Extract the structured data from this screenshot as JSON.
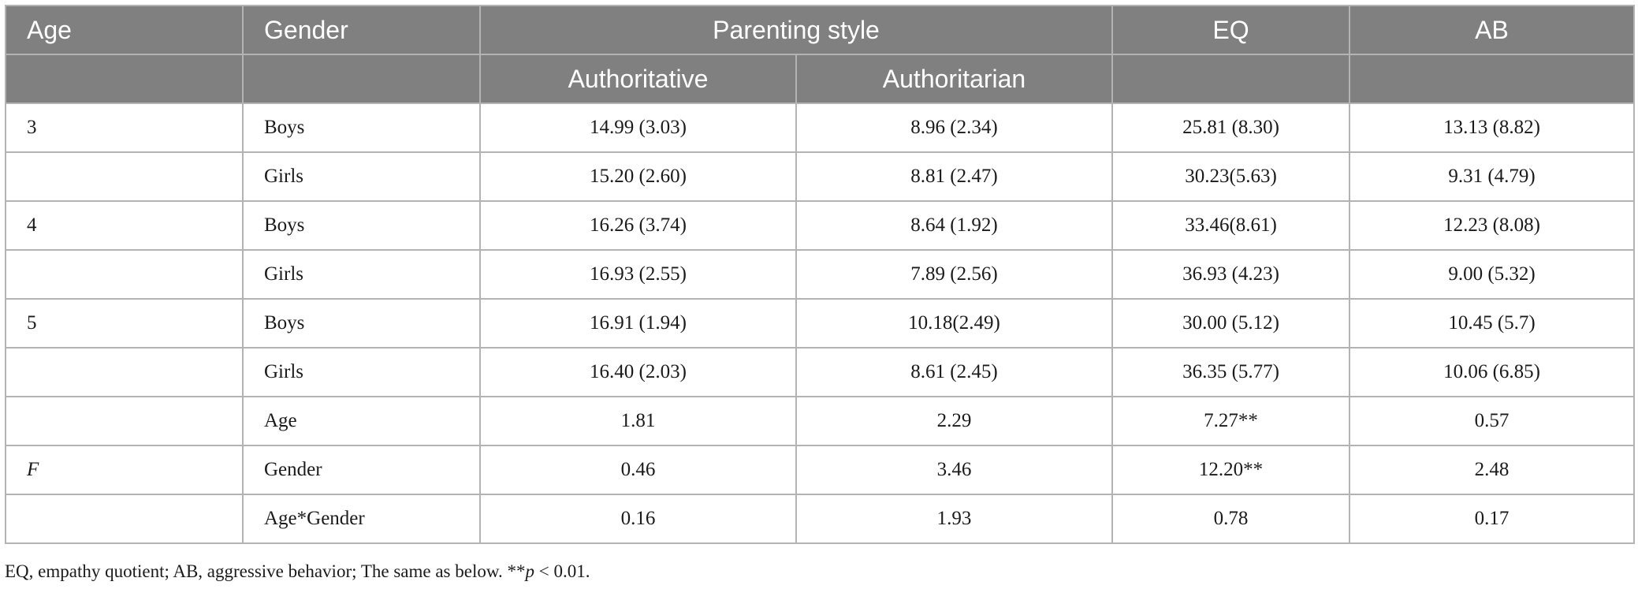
{
  "table": {
    "header_row1": {
      "age": "Age",
      "gender": "Gender",
      "parenting_style": "Parenting style",
      "eq": "EQ",
      "ab": "AB"
    },
    "header_row2": {
      "authoritative": "Authoritative",
      "authoritarian": "Authoritarian"
    },
    "rows": [
      {
        "age": "3",
        "gender": "Boys",
        "authoritative": "14.99 (3.03)",
        "authoritarian": "8.96 (2.34)",
        "eq": "25.81 (8.30)",
        "ab": "13.13 (8.82)"
      },
      {
        "age": "",
        "gender": "Girls",
        "authoritative": "15.20 (2.60)",
        "authoritarian": "8.81 (2.47)",
        "eq": "30.23(5.63)",
        "ab": "9.31 (4.79)"
      },
      {
        "age": "4",
        "gender": "Boys",
        "authoritative": "16.26 (3.74)",
        "authoritarian": "8.64 (1.92)",
        "eq": "33.46(8.61)",
        "ab": "12.23 (8.08)"
      },
      {
        "age": "",
        "gender": "Girls",
        "authoritative": "16.93 (2.55)",
        "authoritarian": "7.89 (2.56)",
        "eq": "36.93 (4.23)",
        "ab": "9.00 (5.32)"
      },
      {
        "age": "5",
        "gender": "Boys",
        "authoritative": "16.91 (1.94)",
        "authoritarian": "10.18(2.49)",
        "eq": "30.00 (5.12)",
        "ab": "10.45 (5.7)"
      },
      {
        "age": "",
        "gender": "Girls",
        "authoritative": "16.40 (2.03)",
        "authoritarian": "8.61 (2.45)",
        "eq": "36.35 (5.77)",
        "ab": "10.06 (6.85)"
      },
      {
        "age": "",
        "gender": "Age",
        "authoritative": "1.81",
        "authoritarian": "2.29",
        "eq": "7.27**",
        "ab": "0.57"
      },
      {
        "age": "F",
        "gender": "Gender",
        "authoritative": "0.46",
        "authoritarian": "3.46",
        "eq": "12.20**",
        "ab": "2.48"
      },
      {
        "age": "",
        "gender": "Age*Gender",
        "authoritative": "0.16",
        "authoritarian": "1.93",
        "eq": "0.78",
        "ab": "0.17"
      }
    ]
  },
  "footnote": {
    "text": "EQ, empathy quotient; AB, aggressive behavior; The same as below. **",
    "p_symbol": "p",
    "tail": " < 0.01."
  }
}
